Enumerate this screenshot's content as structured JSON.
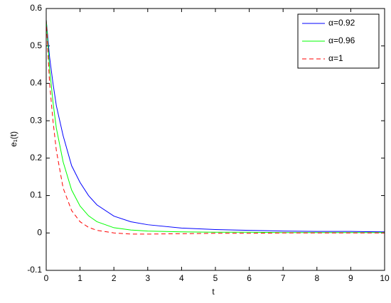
{
  "chart_data": {
    "type": "line",
    "xlabel": "t",
    "ylabel": "e₁(t)",
    "x": [
      0,
      0.1,
      0.2,
      0.3,
      0.5,
      0.75,
      1,
      1.25,
      1.5,
      2,
      2.5,
      3,
      4,
      5,
      6,
      7,
      8,
      9,
      10
    ],
    "series": [
      {
        "name": "α=0.92",
        "color": "#0000ff",
        "style": "solid",
        "values": [
          0.57,
          0.47,
          0.4,
          0.34,
          0.26,
          0.18,
          0.135,
          0.1,
          0.075,
          0.045,
          0.03,
          0.022,
          0.013,
          0.009,
          0.007,
          0.005,
          0.004,
          0.004,
          0.003
        ]
      },
      {
        "name": "α=0.96",
        "color": "#00ff00",
        "style": "solid",
        "values": [
          0.57,
          0.44,
          0.35,
          0.28,
          0.19,
          0.115,
          0.072,
          0.046,
          0.03,
          0.014,
          0.008,
          0.005,
          0.003,
          0.002,
          0.002,
          0.001,
          0.001,
          0.001,
          0.001
        ]
      },
      {
        "name": "α=1",
        "color": "#ff0000",
        "style": "dashed",
        "values": [
          0.57,
          0.4,
          0.3,
          0.22,
          0.12,
          0.06,
          0.03,
          0.015,
          0.007,
          0.0,
          -0.003,
          -0.003,
          -0.002,
          -0.001,
          -0.001,
          0,
          0,
          0,
          0
        ]
      }
    ],
    "xlim": [
      0,
      10
    ],
    "xticks": [
      0,
      1,
      2,
      3,
      4,
      5,
      6,
      7,
      8,
      9,
      10
    ],
    "ylim": [
      -0.1,
      0.6
    ],
    "yticks": [
      -0.1,
      0,
      0.1,
      0.2,
      0.3,
      0.4,
      0.5,
      0.6
    ],
    "grid": false,
    "legend": "top-right"
  }
}
